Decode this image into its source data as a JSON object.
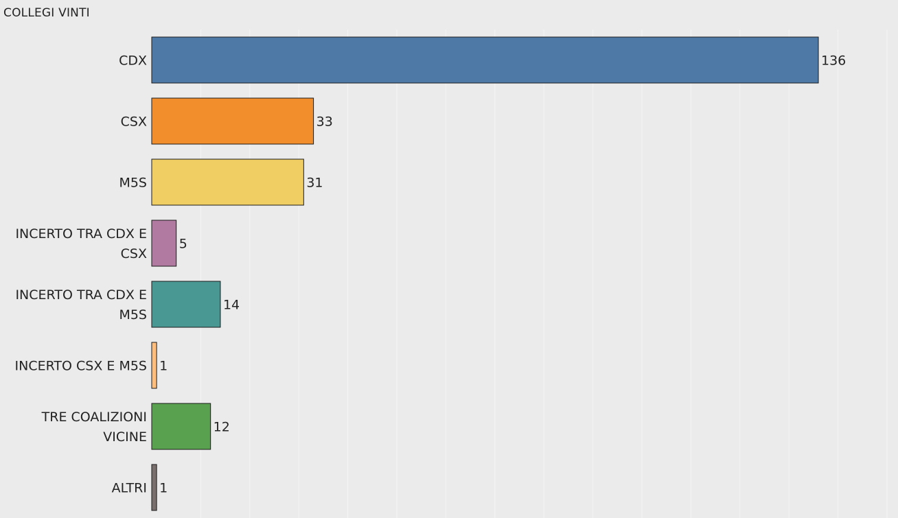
{
  "chart_data": {
    "type": "bar",
    "orientation": "horizontal",
    "title": "COLLEGI VINTI",
    "categories": [
      [
        "CDX"
      ],
      [
        "CSX"
      ],
      [
        "M5S"
      ],
      [
        "INCERTO TRA CDX E",
        "CSX"
      ],
      [
        "INCERTO TRA CDX E",
        "M5S"
      ],
      [
        "INCERTO CSX E M5S"
      ],
      [
        "TRE COALIZIONI",
        "VICINE"
      ],
      [
        "ALTRI"
      ]
    ],
    "values": [
      136,
      33,
      31,
      5,
      14,
      1,
      12,
      1
    ],
    "colors": [
      "#4e79a7",
      "#f28e2b",
      "#f1ce63",
      "#b07aa1",
      "#499894",
      "#ffbe7d",
      "#59a14f",
      "#79706e"
    ],
    "xlim": [
      0,
      152
    ],
    "grid": true,
    "legend": "none"
  }
}
